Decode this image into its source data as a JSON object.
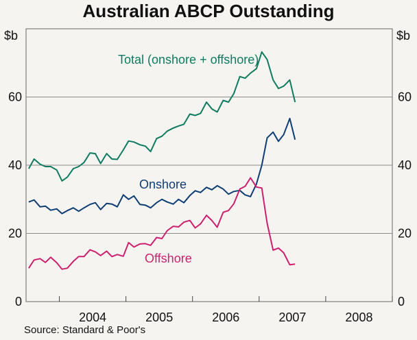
{
  "chart_data": {
    "type": "line",
    "title": "Australian ABCP Outstanding",
    "source": "Source: Standard & Poor's",
    "y_unit_left": "$b",
    "y_unit_right": "$b",
    "ylim": [
      0,
      80
    ],
    "y_ticks": [
      0,
      20,
      40,
      60
    ],
    "x_range": [
      2003.5,
      2009.0
    ],
    "x_ticks": [
      "2004",
      "2005",
      "2006",
      "2007",
      "2008"
    ],
    "grid": true,
    "series": [
      {
        "name": "Total (onshore + offshore)",
        "color": "#0e7a5f",
        "x": [
          2003.54,
          2003.62,
          2003.71,
          2003.79,
          2003.87,
          2003.96,
          2004.04,
          2004.12,
          2004.21,
          2004.29,
          2004.37,
          2004.46,
          2004.54,
          2004.62,
          2004.71,
          2004.79,
          2004.87,
          2004.96,
          2005.04,
          2005.12,
          2005.21,
          2005.29,
          2005.37,
          2005.46,
          2005.54,
          2005.62,
          2005.71,
          2005.79,
          2005.87,
          2005.96,
          2006.04,
          2006.12,
          2006.21,
          2006.29,
          2006.37,
          2006.46,
          2006.54,
          2006.62,
          2006.71,
          2006.79,
          2006.87,
          2006.96,
          2007.04,
          2007.12,
          2007.21,
          2007.29,
          2007.37,
          2007.46,
          2007.54
        ],
        "values": [
          39,
          41.8,
          40.3,
          39.6,
          39.6,
          38.6,
          35.4,
          36.5,
          39,
          39.6,
          40.8,
          43.6,
          43.4,
          40.5,
          43.4,
          41.8,
          41.7,
          44.5,
          47.1,
          46.8,
          46,
          45.6,
          44,
          47.8,
          48.5,
          50,
          50.9,
          51.5,
          52,
          55,
          54.6,
          55.2,
          58.5,
          56.5,
          55.6,
          59,
          58.5,
          61,
          66,
          65.5,
          67,
          68.3,
          73.2,
          71,
          65,
          62.5,
          63.2,
          65,
          58.5
        ]
      },
      {
        "name": "Onshore",
        "color": "#0d3d73",
        "x": [
          2003.54,
          2003.62,
          2003.71,
          2003.79,
          2003.87,
          2003.96,
          2004.04,
          2004.12,
          2004.21,
          2004.29,
          2004.37,
          2004.46,
          2004.54,
          2004.62,
          2004.71,
          2004.79,
          2004.87,
          2004.96,
          2005.04,
          2005.12,
          2005.21,
          2005.29,
          2005.37,
          2005.46,
          2005.54,
          2005.62,
          2005.71,
          2005.79,
          2005.87,
          2005.96,
          2006.04,
          2006.12,
          2006.21,
          2006.29,
          2006.37,
          2006.46,
          2006.54,
          2006.62,
          2006.71,
          2006.79,
          2006.87,
          2006.96,
          2007.04,
          2007.12,
          2007.21,
          2007.29,
          2007.37,
          2007.46,
          2007.54
        ],
        "values": [
          29.2,
          29.8,
          27.8,
          28,
          26.8,
          27.2,
          25.8,
          26.7,
          27.5,
          26.5,
          27.5,
          28.5,
          29,
          27,
          28.8,
          28.6,
          27.8,
          31.3,
          30,
          31,
          28.5,
          28.3,
          27.5,
          29,
          30,
          29.2,
          28.6,
          30,
          29,
          31.1,
          32.5,
          32,
          33.5,
          32.8,
          34,
          33,
          31.5,
          32.3,
          32.6,
          31.3,
          30.8,
          34.5,
          40,
          48,
          49.7,
          47,
          49,
          53.7,
          47.5
        ]
      },
      {
        "name": "Offshore",
        "color": "#cc1f6e",
        "x": [
          2003.54,
          2003.62,
          2003.71,
          2003.79,
          2003.87,
          2003.96,
          2004.04,
          2004.12,
          2004.21,
          2004.29,
          2004.37,
          2004.46,
          2004.54,
          2004.62,
          2004.71,
          2004.79,
          2004.87,
          2004.96,
          2005.04,
          2005.12,
          2005.21,
          2005.29,
          2005.37,
          2005.46,
          2005.54,
          2005.62,
          2005.71,
          2005.79,
          2005.87,
          2005.96,
          2006.04,
          2006.12,
          2006.21,
          2006.29,
          2006.37,
          2006.46,
          2006.54,
          2006.62,
          2006.71,
          2006.79,
          2006.87,
          2006.96,
          2007.04,
          2007.12,
          2007.21,
          2007.29,
          2007.37,
          2007.46,
          2007.54
        ],
        "values": [
          9.8,
          12.2,
          12.6,
          11.5,
          13,
          11.4,
          9.5,
          9.8,
          11.8,
          13.2,
          13.2,
          15.2,
          14.6,
          13.5,
          14.8,
          13.2,
          13.8,
          13.3,
          17.3,
          16,
          16.9,
          17,
          16.5,
          18.8,
          18.5,
          20.8,
          22.1,
          21.9,
          23.3,
          23.8,
          21.6,
          22.8,
          25.3,
          23.8,
          21.8,
          26.2,
          26.7,
          28.7,
          33,
          33.8,
          36.3,
          33.6,
          33.3,
          23,
          15.1,
          15.7,
          14.3,
          10.8,
          11
        ]
      }
    ],
    "labels": {
      "total": "Total (onshore + offshore)",
      "onshore": "Onshore",
      "offshore": "Offshore"
    }
  }
}
